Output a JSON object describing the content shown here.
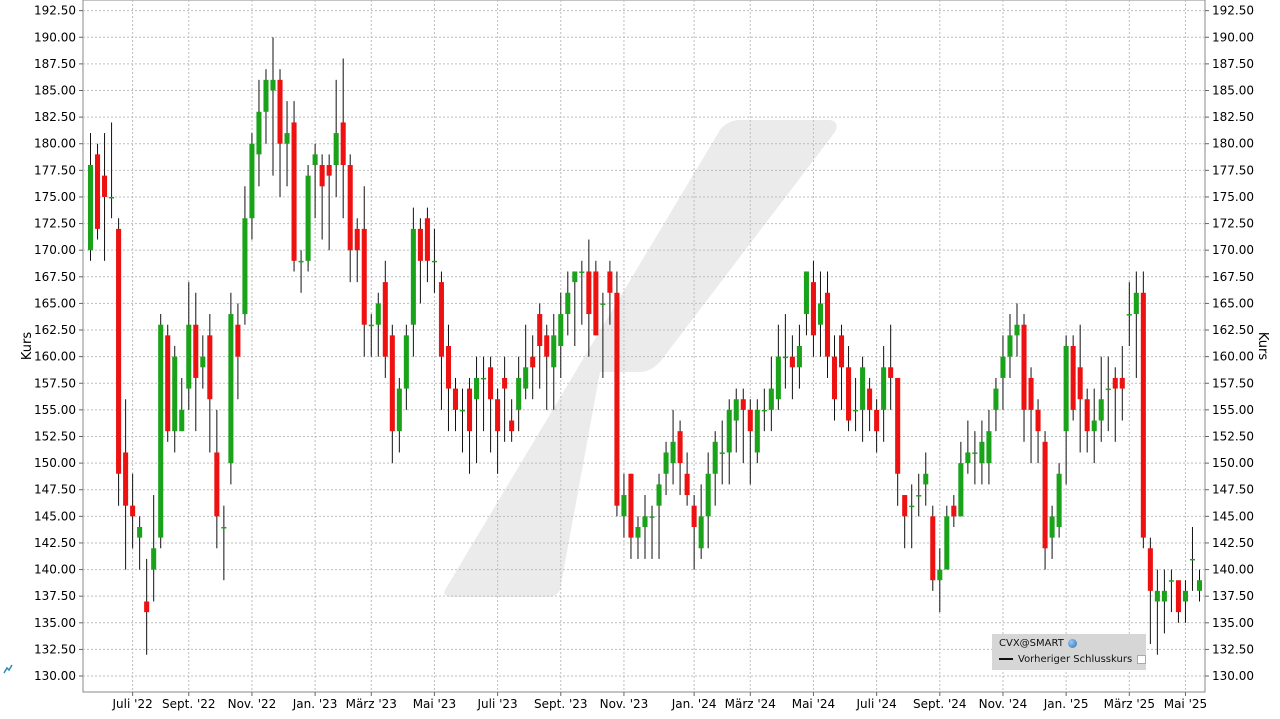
{
  "chart_data": {
    "type": "candlestick",
    "instrument": "CVX@SMART",
    "legend": {
      "series_label": "CVX@SMART",
      "previous_close_label": "Vorheriger Schlusskurs"
    },
    "ylabel": "Kurs",
    "ylim": [
      128.5,
      193.5
    ],
    "y_ticks": [
      "130.00",
      "132.50",
      "135.00",
      "137.50",
      "140.00",
      "142.50",
      "145.00",
      "147.50",
      "150.00",
      "152.50",
      "155.00",
      "157.50",
      "160.00",
      "162.50",
      "165.00",
      "167.50",
      "170.00",
      "172.50",
      "175.00",
      "177.50",
      "180.00",
      "182.50",
      "185.00",
      "187.50",
      "190.00",
      "192.50"
    ],
    "x_ticks": [
      "Juli '22",
      "Sept. '22",
      "Nov. '22",
      "Jan. '23",
      "März '23",
      "Mai '23",
      "Juli '23",
      "Sept. '23",
      "Nov. '23",
      "Jan. '24",
      "März '24",
      "Mai '24",
      "Juli '24",
      "Sept. '24",
      "Nov. '24",
      "Jan. '25",
      "März '25",
      "Mai '25"
    ],
    "x_tick_index": [
      6,
      14,
      23,
      32,
      40,
      49,
      58,
      67,
      76,
      86,
      94,
      103,
      112,
      121,
      130,
      139,
      148,
      156
    ],
    "grid": true,
    "up_color": "#1aa31a",
    "down_color": "#ee1111",
    "candles": [
      [
        170,
        178,
        181,
        169
      ],
      [
        179,
        172,
        180,
        171
      ],
      [
        177,
        175,
        181,
        169
      ],
      [
        175,
        175,
        182,
        173
      ],
      [
        172,
        149,
        173,
        146
      ],
      [
        151,
        146,
        156,
        140
      ],
      [
        146,
        145,
        149,
        142
      ],
      [
        143,
        144,
        145,
        140
      ],
      [
        137,
        136,
        141,
        132
      ],
      [
        140,
        142,
        147,
        137
      ],
      [
        143,
        163,
        164,
        142
      ],
      [
        162,
        153,
        163,
        152
      ],
      [
        153,
        160,
        161,
        151
      ],
      [
        153,
        155,
        158,
        153
      ],
      [
        157,
        163,
        167,
        155
      ],
      [
        163,
        158,
        166,
        153
      ],
      [
        159,
        160,
        162,
        157
      ],
      [
        162,
        156,
        164,
        151
      ],
      [
        151,
        145,
        155,
        142
      ],
      [
        144,
        144,
        146,
        139
      ],
      [
        150,
        164,
        166,
        148
      ],
      [
        163,
        160,
        165,
        156
      ],
      [
        164,
        173,
        176,
        163
      ],
      [
        173,
        180,
        181,
        171
      ],
      [
        179,
        183,
        186,
        176
      ],
      [
        183,
        186,
        187,
        180
      ],
      [
        185,
        186,
        190,
        177
      ],
      [
        186,
        180,
        187,
        175
      ],
      [
        180,
        181,
        184,
        176
      ],
      [
        182,
        169,
        184,
        168
      ],
      [
        169,
        169,
        170,
        166
      ],
      [
        169,
        177,
        178,
        168
      ],
      [
        178,
        179,
        180,
        173
      ],
      [
        178,
        176,
        179,
        171
      ],
      [
        178,
        177,
        179,
        170
      ],
      [
        178,
        181,
        186,
        175
      ],
      [
        182,
        178,
        188,
        173
      ],
      [
        178,
        170,
        179,
        167
      ],
      [
        172,
        170,
        173,
        167
      ],
      [
        172,
        163,
        176,
        160
      ],
      [
        163,
        163,
        164,
        160
      ],
      [
        163,
        165,
        166,
        160
      ],
      [
        167,
        160,
        169,
        158
      ],
      [
        162,
        153,
        163,
        150
      ],
      [
        153,
        157,
        158,
        151
      ],
      [
        157,
        162,
        163,
        155
      ],
      [
        163,
        172,
        174,
        160
      ],
      [
        172,
        169,
        173,
        165
      ],
      [
        173,
        169,
        174,
        167
      ],
      [
        169,
        169,
        172,
        166
      ],
      [
        167,
        160,
        168,
        155
      ],
      [
        161,
        157,
        163,
        153
      ],
      [
        157,
        155,
        158,
        153
      ],
      [
        155,
        155,
        157,
        151
      ],
      [
        157,
        153,
        158,
        149
      ],
      [
        156,
        158,
        160,
        150
      ],
      [
        158,
        158,
        160,
        153
      ],
      [
        159,
        156,
        160,
        151
      ],
      [
        156,
        153,
        157,
        149
      ],
      [
        158,
        157,
        160,
        152
      ],
      [
        154,
        153,
        156,
        152
      ],
      [
        155,
        158,
        160,
        153
      ],
      [
        157,
        159,
        163,
        156
      ],
      [
        160,
        159,
        162,
        156
      ],
      [
        164,
        161,
        165,
        157
      ],
      [
        162,
        160,
        163,
        155
      ],
      [
        159,
        162,
        164,
        155
      ],
      [
        161,
        164,
        166,
        158
      ],
      [
        164,
        166,
        168,
        162
      ],
      [
        167,
        168,
        168,
        161
      ],
      [
        168,
        168,
        169,
        163
      ],
      [
        168,
        164,
        171,
        160
      ],
      [
        168,
        162,
        169,
        162
      ],
      [
        165,
        165,
        166,
        158
      ],
      [
        168,
        166,
        169,
        163
      ],
      [
        166,
        146,
        168,
        145
      ],
      [
        145,
        147,
        149,
        143
      ],
      [
        149,
        143,
        149,
        141
      ],
      [
        143,
        144,
        145,
        141
      ],
      [
        144,
        145,
        147,
        141
      ],
      [
        145,
        145,
        146,
        141
      ],
      [
        146,
        148,
        149,
        141
      ],
      [
        149,
        151,
        152,
        147
      ],
      [
        150,
        152,
        155,
        148
      ],
      [
        153,
        150,
        154,
        147
      ],
      [
        149,
        147,
        151,
        146
      ],
      [
        146,
        144,
        147,
        140
      ],
      [
        142,
        145,
        148,
        141
      ],
      [
        145,
        149,
        151,
        142
      ],
      [
        149,
        152,
        153,
        146
      ],
      [
        151,
        151,
        154,
        148
      ],
      [
        151,
        155,
        156,
        148
      ],
      [
        154,
        156,
        157,
        151
      ],
      [
        156,
        155,
        157,
        150
      ],
      [
        155,
        153,
        156,
        148
      ],
      [
        151,
        155,
        156,
        150
      ],
      [
        155,
        155,
        157,
        153
      ],
      [
        155,
        157,
        160,
        153
      ],
      [
        156,
        160,
        163,
        155
      ],
      [
        160,
        160,
        164,
        157
      ],
      [
        160,
        159,
        162,
        156
      ],
      [
        159,
        161,
        163,
        157
      ],
      [
        164,
        168,
        168,
        162
      ],
      [
        167,
        162,
        169,
        160
      ],
      [
        163,
        165,
        168,
        160
      ],
      [
        166,
        160,
        168,
        158
      ],
      [
        160,
        156,
        162,
        154
      ],
      [
        162,
        159,
        163,
        155
      ],
      [
        159,
        154,
        161,
        153
      ],
      [
        155,
        155,
        158,
        153
      ],
      [
        155,
        159,
        160,
        152
      ],
      [
        157,
        155,
        158,
        153
      ],
      [
        155,
        153,
        156,
        151
      ],
      [
        155,
        159,
        161,
        152
      ],
      [
        159,
        158,
        163,
        155
      ],
      [
        158,
        149,
        158,
        146
      ],
      [
        147,
        145,
        147,
        142
      ],
      [
        146,
        146,
        148,
        142
      ],
      [
        147,
        147,
        149,
        145
      ],
      [
        148,
        149,
        151,
        146
      ],
      [
        145,
        139,
        146,
        138
      ],
      [
        139,
        140,
        142,
        136
      ],
      [
        140,
        145,
        146,
        141
      ],
      [
        146,
        145,
        147,
        144
      ],
      [
        145,
        150,
        152,
        145
      ],
      [
        150,
        151,
        154,
        149
      ],
      [
        151,
        151,
        153,
        148
      ],
      [
        150,
        152,
        154,
        148
      ],
      [
        150,
        153,
        155,
        148
      ],
      [
        155,
        157,
        158,
        153
      ],
      [
        158,
        160,
        162,
        155
      ],
      [
        160,
        162,
        164,
        158
      ],
      [
        162,
        163,
        165,
        160
      ],
      [
        163,
        155,
        164,
        152
      ],
      [
        158,
        155,
        159,
        150
      ],
      [
        155,
        153,
        156,
        150
      ],
      [
        152,
        142,
        153,
        140
      ],
      [
        143,
        145,
        146,
        141
      ],
      [
        144,
        149,
        150,
        143
      ],
      [
        153,
        161,
        162,
        148
      ],
      [
        161,
        155,
        162,
        154
      ],
      [
        159,
        156,
        163,
        151
      ],
      [
        156,
        153,
        157,
        151
      ],
      [
        153,
        154,
        157,
        150
      ],
      [
        154,
        156,
        160,
        152
      ],
      [
        157,
        157,
        160,
        153
      ],
      [
        158,
        157,
        159,
        152
      ],
      [
        158,
        157,
        161,
        154
      ],
      [
        164,
        164,
        167,
        161
      ],
      [
        164,
        166,
        168,
        158
      ],
      [
        166,
        143,
        168,
        142
      ],
      [
        142,
        138,
        143,
        133
      ],
      [
        137,
        138,
        140,
        132
      ],
      [
        137,
        138,
        140,
        134
      ],
      [
        139,
        139,
        140,
        136
      ],
      [
        139,
        136,
        138,
        135
      ],
      [
        137,
        138,
        139,
        135
      ],
      [
        141,
        141,
        144,
        138
      ],
      [
        138,
        139,
        140,
        137
      ]
    ]
  }
}
